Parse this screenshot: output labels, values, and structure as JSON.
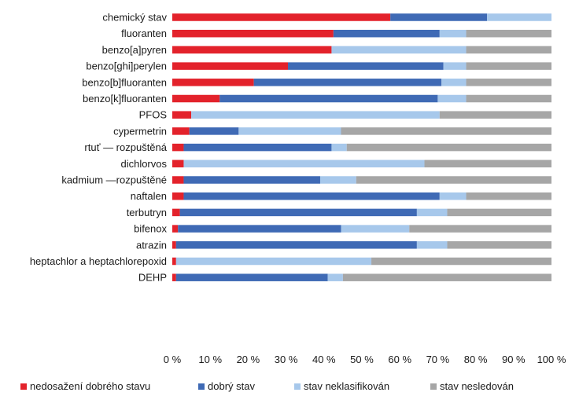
{
  "chart_data": {
    "type": "bar",
    "orientation": "horizontal",
    "stacked": true,
    "categories": [
      "chemický stav",
      "fluoranten",
      "benzo[a]pyren",
      "benzo[ghi]perylen",
      "benzo[b]fluoranten",
      "benzo[k]fluoranten",
      "PFOS",
      "cypermetrin",
      "rtuť — rozpuštěná",
      "dichlorvos",
      "kadmium —rozpuštěné",
      "naftalen",
      "terbutryn",
      "bifenox",
      "atrazin",
      "heptachlor a heptachlorepoxid",
      "DEHP"
    ],
    "series": [
      {
        "name": "nedosažení dobrého stavu",
        "color": "#e3222b",
        "values": [
          57.5,
          42.5,
          42,
          30.5,
          21.5,
          12.5,
          5,
          4.5,
          3,
          3,
          3,
          3,
          2,
          1.5,
          1,
          1,
          1
        ]
      },
      {
        "name": "dobrý stav",
        "color": "#3f6ab5",
        "values": [
          25.5,
          28,
          0,
          41,
          49.5,
          57.5,
          0,
          13,
          39,
          0,
          36,
          67.5,
          62.5,
          43,
          63.5,
          0,
          40
        ]
      },
      {
        "name": "stav neklasifikován",
        "color": "#a7c8eb",
        "values": [
          17,
          7,
          35.5,
          6,
          6.5,
          7.5,
          65.5,
          27,
          4,
          63.5,
          9.5,
          7,
          8,
          18,
          8,
          51.5,
          4
        ]
      },
      {
        "name": "stav nesledován",
        "color": "#a6a6a6",
        "values": [
          0,
          22.5,
          22.5,
          22.5,
          22.5,
          22.5,
          29.5,
          55.5,
          54,
          33.5,
          51.5,
          22.5,
          27.5,
          37.5,
          27.5,
          47.5,
          55
        ]
      }
    ],
    "x_ticks": [
      "0 %",
      "10 %",
      "20 %",
      "30 %",
      "40 %",
      "50 %",
      "60 %",
      "70 %",
      "80 %",
      "90 %",
      "100 %"
    ],
    "xlim": [
      0,
      100
    ],
    "grid": false,
    "legend_position": "bottom"
  }
}
